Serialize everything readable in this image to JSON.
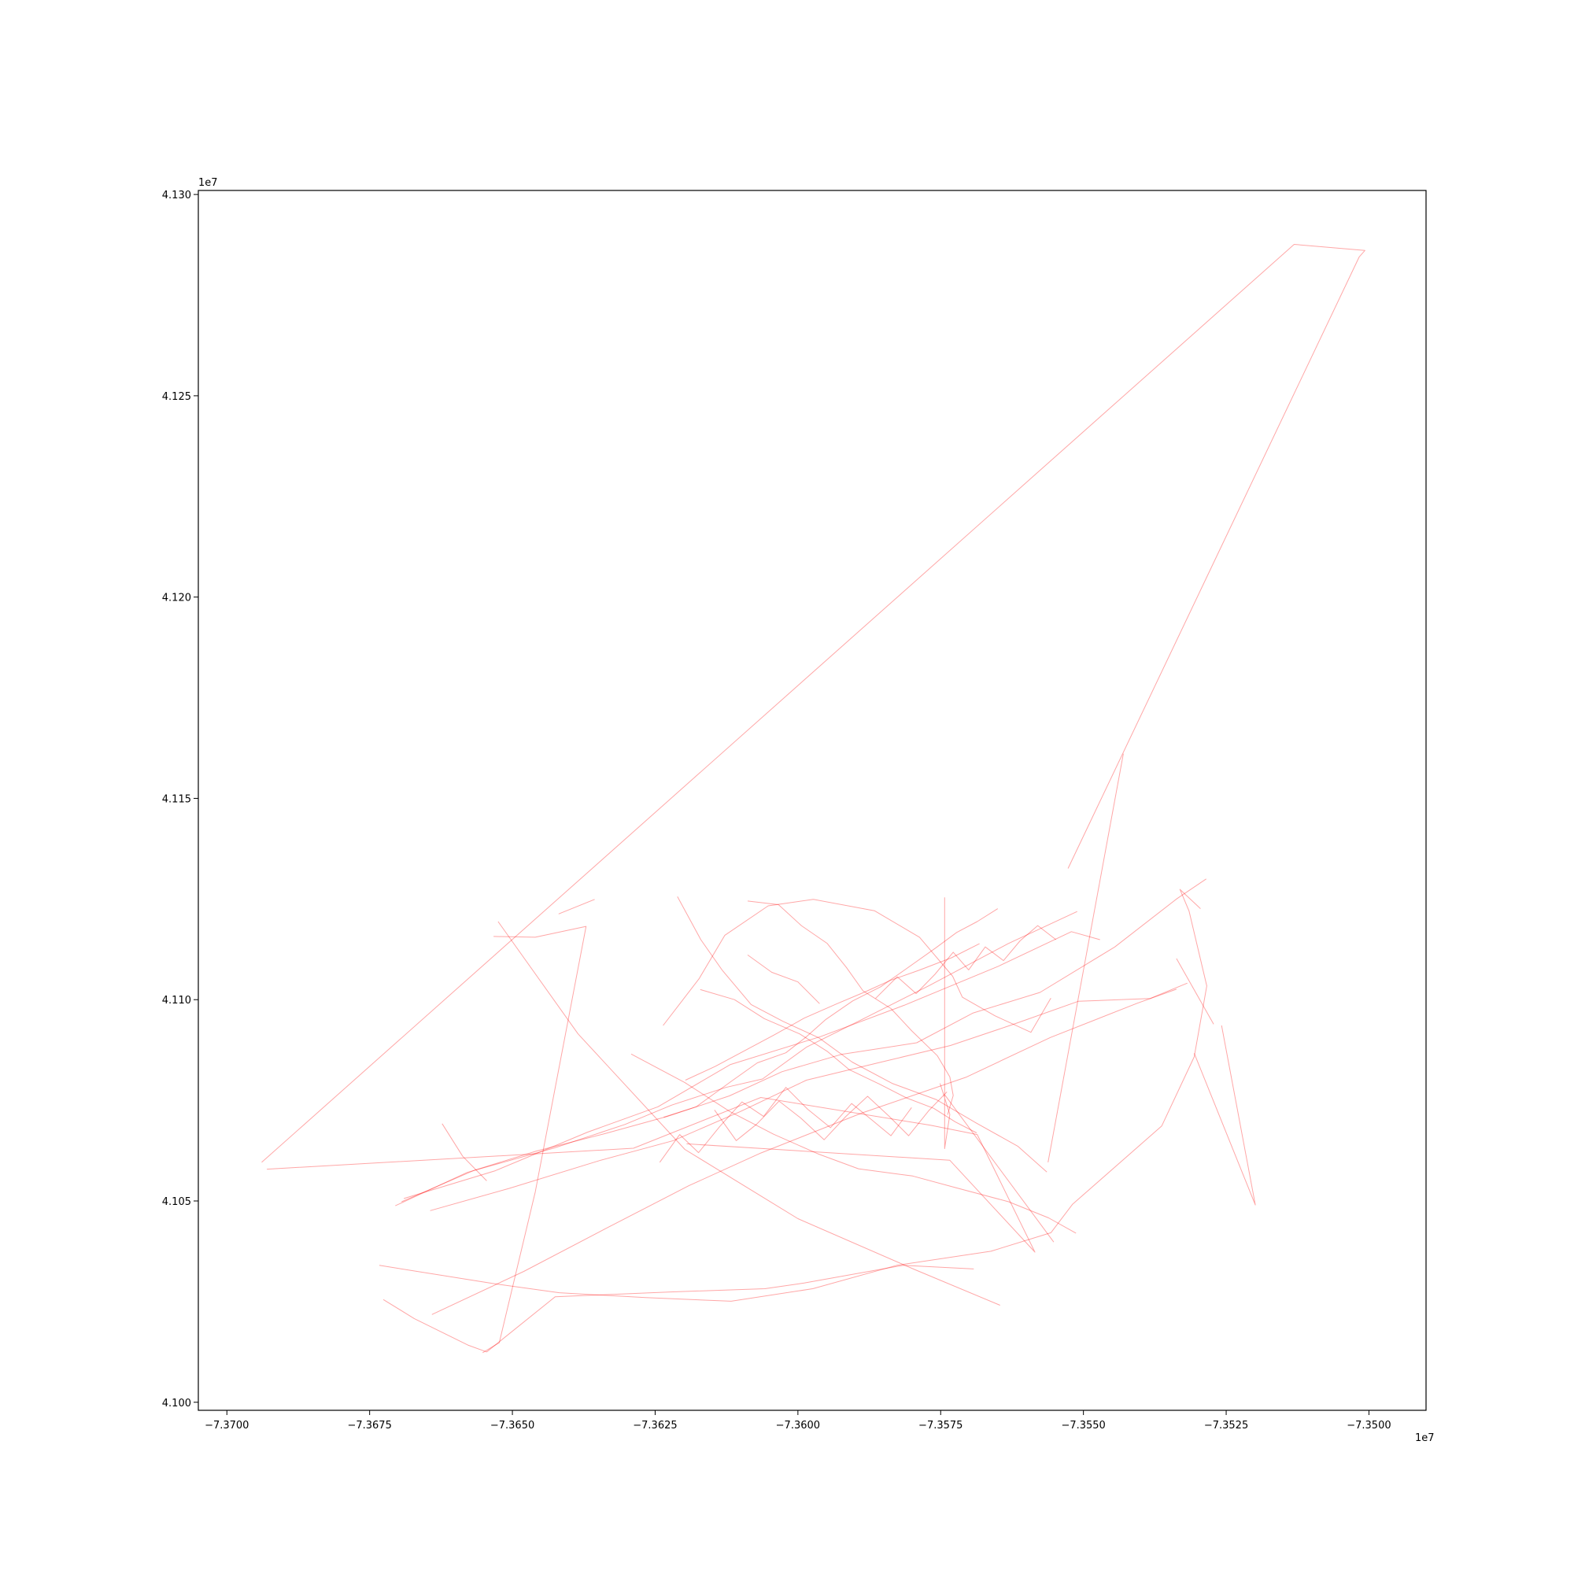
{
  "chart_data": {
    "type": "line",
    "title": "",
    "xlabel": "",
    "ylabel": "",
    "x_offset_text": "1e7",
    "y_offset_text": "1e7",
    "xlim": [
      -7.3705,
      -7.349
    ],
    "ylim": [
      4.0998,
      4.1301
    ],
    "xticks": [
      -7.37,
      -7.3675,
      -7.365,
      -7.3625,
      -7.36,
      -7.3575,
      -7.355,
      -7.3525,
      -7.35
    ],
    "xtick_labels": [
      "−7.3700",
      "−7.3675",
      "−7.3650",
      "−7.3625",
      "−7.3600",
      "−7.3575",
      "−7.3550",
      "−7.3525",
      "−7.3500"
    ],
    "yticks": [
      4.1,
      4.105,
      4.11,
      4.115,
      4.12,
      4.125,
      4.13
    ],
    "ytick_labels": [
      "4.100",
      "4.105",
      "4.110",
      "4.115",
      "4.120",
      "4.125",
      "4.130"
    ],
    "grid": false,
    "line_color": "#ff0000",
    "line_opacity": 0.35,
    "series": [
      {
        "values": [
          [
            -7.36939,
            4.10596
          ],
          [
            -7.35131,
            4.12876
          ],
          [
            -7.35007,
            4.12861
          ],
          [
            -7.35017,
            4.12845
          ],
          [
            -7.35527,
            4.11326
          ]
        ]
      },
      {
        "values": [
          [
            -7.3693,
            4.10579
          ],
          [
            -7.36288,
            4.10631
          ],
          [
            -7.36065,
            4.10757
          ],
          [
            -7.35768,
            4.10688
          ],
          [
            -7.35686,
            4.10665
          ],
          [
            -7.35585,
            4.10373
          ],
          [
            -7.35734,
            4.10601
          ],
          [
            -7.36195,
            4.10642
          ]
        ]
      },
      {
        "values": [
          [
            -7.36726,
            4.10255
          ],
          [
            -7.36672,
            4.10208
          ],
          [
            -7.36578,
            4.10142
          ],
          [
            -7.36545,
            4.10125
          ],
          [
            -7.36425,
            4.10262
          ],
          [
            -7.36223,
            4.10274
          ],
          [
            -7.36058,
            4.10282
          ],
          [
            -7.35989,
            4.10296
          ],
          [
            -7.35816,
            4.1034
          ],
          [
            -7.35692,
            4.10331
          ]
        ]
      },
      {
        "values": [
          [
            -7.36525,
            4.11194
          ],
          [
            -7.36385,
            4.10915
          ],
          [
            -7.36198,
            4.10628
          ],
          [
            -7.36,
            4.10456
          ],
          [
            -7.35796,
            4.1033
          ],
          [
            -7.35646,
            4.10241
          ]
        ]
      },
      {
        "values": [
          [
            -7.36733,
            4.1034
          ],
          [
            -7.36534,
            4.10295
          ],
          [
            -7.36418,
            4.10272
          ],
          [
            -7.36267,
            4.1026
          ],
          [
            -7.36117,
            4.10251
          ],
          [
            -7.35974,
            4.10282
          ],
          [
            -7.35827,
            4.1034
          ],
          [
            -7.35662,
            4.10375
          ],
          [
            -7.35557,
            4.10421
          ],
          [
            -7.35519,
            4.10492
          ],
          [
            -7.35363,
            4.10686
          ],
          [
            -7.35306,
            4.10858
          ],
          [
            -7.35284,
            4.11034
          ],
          [
            -7.35315,
            4.1122
          ],
          [
            -7.35331,
            4.11274
          ],
          [
            -7.35295,
            4.11226
          ]
        ]
      },
      {
        "values": [
          [
            -7.36641,
            4.10218
          ],
          [
            -7.3648,
            4.10325
          ],
          [
            -7.36336,
            4.10432
          ],
          [
            -7.36191,
            4.10538
          ],
          [
            -7.36065,
            4.10619
          ],
          [
            -7.35889,
            4.10718
          ],
          [
            -7.35706,
            4.10807
          ],
          [
            -7.35558,
            4.10906
          ],
          [
            -7.35406,
            4.10991
          ],
          [
            -7.35337,
            4.11026
          ]
        ]
      },
      {
        "values": [
          [
            -7.36552,
            4.10123
          ],
          [
            -7.36523,
            4.10148
          ],
          [
            -7.3646,
            4.10522
          ],
          [
            -7.36371,
            4.11182
          ],
          [
            -7.3646,
            4.11155
          ],
          [
            -7.36533,
            4.11157
          ]
        ]
      },
      {
        "values": [
          [
            -7.3669,
            4.10506
          ],
          [
            -7.3653,
            4.10575
          ],
          [
            -7.36368,
            4.10671
          ],
          [
            -7.36245,
            4.10734
          ],
          [
            -7.36118,
            4.10839
          ],
          [
            -7.35961,
            4.10908
          ],
          [
            -7.35814,
            4.10986
          ],
          [
            -7.35649,
            4.11083
          ],
          [
            -7.35521,
            4.11169
          ],
          [
            -7.35471,
            4.11149
          ]
        ]
      },
      {
        "values": [
          [
            -7.36705,
            4.10488
          ],
          [
            -7.36579,
            4.10571
          ],
          [
            -7.36426,
            4.10632
          ],
          [
            -7.36303,
            4.1069
          ],
          [
            -7.36221,
            4.10738
          ],
          [
            -7.36126,
            4.10782
          ],
          [
            -7.36062,
            4.10803
          ],
          [
            -7.35985,
            4.10882
          ],
          [
            -7.35893,
            4.10947
          ],
          [
            -7.3577,
            4.11035
          ],
          [
            -7.35632,
            4.11139
          ],
          [
            -7.35511,
            4.11219
          ]
        ]
      },
      {
        "values": [
          [
            -7.36644,
            4.10476
          ],
          [
            -7.36506,
            4.10531
          ],
          [
            -7.36348,
            4.106
          ],
          [
            -7.36218,
            4.1065
          ],
          [
            -7.36101,
            4.10722
          ],
          [
            -7.35985,
            4.108
          ],
          [
            -7.35854,
            4.10845
          ],
          [
            -7.35733,
            4.10886
          ],
          [
            -7.35624,
            4.10938
          ],
          [
            -7.35509,
            4.10996
          ],
          [
            -7.35383,
            4.11003
          ],
          [
            -7.35318,
            4.11041
          ]
        ]
      },
      {
        "values": [
          [
            -7.36694,
            4.10498
          ],
          [
            -7.36567,
            4.10576
          ],
          [
            -7.36458,
            4.10624
          ],
          [
            -7.36339,
            4.10667
          ],
          [
            -7.36229,
            4.1071
          ],
          [
            -7.3612,
            4.10761
          ],
          [
            -7.36028,
            4.10821
          ],
          [
            -7.35924,
            4.10864
          ],
          [
            -7.35792,
            4.10893
          ],
          [
            -7.35693,
            4.10967
          ],
          [
            -7.35576,
            4.11018
          ],
          [
            -7.35445,
            4.11131
          ],
          [
            -7.35336,
            4.11251
          ],
          [
            -7.35285,
            4.113
          ]
        ]
      },
      {
        "values": [
          [
            -7.36236,
            4.10936
          ],
          [
            -7.36173,
            4.11052
          ],
          [
            -7.36128,
            4.1116
          ],
          [
            -7.36052,
            4.11233
          ],
          [
            -7.35973,
            4.11249
          ],
          [
            -7.35866,
            4.11221
          ],
          [
            -7.35787,
            4.11155
          ],
          [
            -7.35729,
            4.11058
          ],
          [
            -7.35712,
            4.11006
          ],
          [
            -7.35655,
            4.1096
          ],
          [
            -7.35592,
            4.10919
          ],
          [
            -7.35557,
            4.11004
          ]
        ]
      },
      {
        "values": [
          [
            -7.36211,
            4.11256
          ],
          [
            -7.3617,
            4.11149
          ],
          [
            -7.36133,
            4.11074
          ],
          [
            -7.36082,
            4.10988
          ],
          [
            -7.36026,
            4.10946
          ],
          [
            -7.35963,
            4.10905
          ],
          [
            -7.35905,
            4.10845
          ],
          [
            -7.35835,
            4.10792
          ],
          [
            -7.35758,
            4.10752
          ],
          [
            -7.35688,
            4.10694
          ],
          [
            -7.35615,
            4.10636
          ],
          [
            -7.35564,
            4.10572
          ]
        ]
      },
      {
        "values": [
          [
            -7.36292,
            4.10865
          ],
          [
            -7.36198,
            4.10794
          ],
          [
            -7.36119,
            4.10722
          ],
          [
            -7.36043,
            4.10666
          ],
          [
            -7.35965,
            4.10617
          ],
          [
            -7.35894,
            4.1058
          ],
          [
            -7.35799,
            4.10562
          ],
          [
            -7.35721,
            4.10532
          ],
          [
            -7.35631,
            4.10498
          ],
          [
            -7.35561,
            4.10458
          ],
          [
            -7.35513,
            4.1042
          ]
        ]
      },
      {
        "values": [
          [
            -7.36235,
            4.10708
          ],
          [
            -7.36178,
            4.10734
          ],
          [
            -7.36116,
            4.10798
          ],
          [
            -7.36071,
            4.10843
          ],
          [
            -7.36021,
            4.10868
          ],
          [
            -7.35985,
            4.10908
          ],
          [
            -7.35951,
            4.10951
          ],
          [
            -7.35904,
            4.10997
          ],
          [
            -7.35855,
            4.11032
          ],
          [
            -7.35812,
            4.11075
          ],
          [
            -7.35759,
            4.11128
          ],
          [
            -7.35722,
            4.11167
          ],
          [
            -7.35686,
            4.11194
          ],
          [
            -7.3565,
            4.11226
          ]
        ]
      },
      {
        "values": [
          [
            -7.36088,
            4.11245
          ],
          [
            -7.36034,
            4.11236
          ],
          [
            -7.35994,
            4.11184
          ],
          [
            -7.35949,
            4.1114
          ],
          [
            -7.35915,
            4.1108
          ],
          [
            -7.35886,
            4.11022
          ],
          [
            -7.35837,
            4.10978
          ],
          [
            -7.35801,
            4.10923
          ],
          [
            -7.35756,
            4.10861
          ],
          [
            -7.35734,
            4.10808
          ],
          [
            -7.35728,
            4.10762
          ],
          [
            -7.35738,
            4.10714
          ]
        ]
      },
      {
        "values": [
          [
            -7.36171,
            4.11025
          ],
          [
            -7.36111,
            4.11
          ],
          [
            -7.36059,
            4.10953
          ],
          [
            -7.35997,
            4.10915
          ],
          [
            -7.35948,
            4.10871
          ],
          [
            -7.3591,
            4.10826
          ],
          [
            -7.35857,
            4.1079
          ],
          [
            -7.3581,
            4.10756
          ],
          [
            -7.35762,
            4.1073
          ],
          [
            -7.35724,
            4.10696
          ],
          [
            -7.35687,
            4.10669
          ]
        ]
      },
      {
        "values": [
          [
            -7.36197,
            4.108
          ],
          [
            -7.36145,
            4.10834
          ],
          [
            -7.36091,
            4.10875
          ],
          [
            -7.36042,
            4.10912
          ],
          [
            -7.35989,
            4.10954
          ],
          [
            -7.35933,
            4.10989
          ],
          [
            -7.35883,
            4.11019
          ],
          [
            -7.35838,
            4.11048
          ],
          [
            -7.35788,
            4.11073
          ],
          [
            -7.35731,
            4.11104
          ],
          [
            -7.35682,
            4.11139
          ]
        ]
      },
      {
        "values": [
          [
            -7.36146,
            4.10726
          ],
          [
            -7.36108,
            4.1065
          ],
          [
            -7.36072,
            4.10691
          ],
          [
            -7.36033,
            4.10748
          ],
          [
            -7.35995,
            4.10706
          ],
          [
            -7.35954,
            4.10652
          ],
          [
            -7.35916,
            4.1071
          ],
          [
            -7.35878,
            4.1076
          ],
          [
            -7.3584,
            4.1071
          ],
          [
            -7.35806,
            4.10662
          ],
          [
            -7.35771,
            4.10724
          ],
          [
            -7.35739,
            4.10771
          ]
        ]
      },
      {
        "values": [
          [
            -7.36242,
            4.10596
          ],
          [
            -7.36207,
            4.10665
          ],
          [
            -7.36174,
            4.1062
          ],
          [
            -7.36137,
            4.10685
          ],
          [
            -7.36098,
            4.10746
          ],
          [
            -7.3606,
            4.1071
          ],
          [
            -7.36021,
            4.10782
          ],
          [
            -7.35983,
            4.10728
          ],
          [
            -7.35943,
            4.10682
          ],
          [
            -7.35906,
            4.10742
          ],
          [
            -7.35872,
            4.10703
          ],
          [
            -7.35837,
            4.10662
          ],
          [
            -7.35801,
            4.10732
          ]
        ]
      },
      {
        "values": [
          [
            -7.35864,
            4.11003
          ],
          [
            -7.35826,
            4.11057
          ],
          [
            -7.35793,
            4.11015
          ],
          [
            -7.3576,
            4.11063
          ],
          [
            -7.35728,
            4.11118
          ],
          [
            -7.35701,
            4.11074
          ],
          [
            -7.35672,
            4.11131
          ],
          [
            -7.3564,
            4.11097
          ],
          [
            -7.35611,
            4.11146
          ],
          [
            -7.3558,
            4.11184
          ],
          [
            -7.35548,
            4.11149
          ]
        ]
      },
      {
        "values": [
          [
            -7.35743,
            4.11254
          ],
          [
            -7.35743,
            4.1063
          ],
          [
            -7.35734,
            4.10715
          ],
          [
            -7.35751,
            4.10792
          ]
        ]
      },
      {
        "values": [
          [
            -7.35337,
            4.11102
          ],
          [
            -7.35272,
            4.10939
          ]
        ]
      },
      {
        "values": [
          [
            -7.35258,
            4.10936
          ],
          [
            -7.35199,
            4.1049
          ],
          [
            -7.35306,
            4.10867
          ]
        ]
      },
      {
        "values": [
          [
            -7.3543,
            4.11611
          ],
          [
            -7.35562,
            4.10596
          ]
        ]
      },
      {
        "values": [
          [
            -7.36419,
            4.11213
          ],
          [
            -7.36356,
            4.11249
          ]
        ]
      },
      {
        "values": [
          [
            -7.35743,
            4.10764
          ],
          [
            -7.35552,
            4.10398
          ]
        ]
      },
      {
        "values": [
          [
            -7.36623,
            4.10692
          ],
          [
            -7.36587,
            4.10611
          ],
          [
            -7.36545,
            4.1055
          ]
        ]
      },
      {
        "values": [
          [
            -7.36088,
            4.11111
          ],
          [
            -7.36046,
            4.11068
          ],
          [
            -7.36,
            4.11044
          ],
          [
            -7.35962,
            4.1099
          ]
        ]
      }
    ]
  }
}
